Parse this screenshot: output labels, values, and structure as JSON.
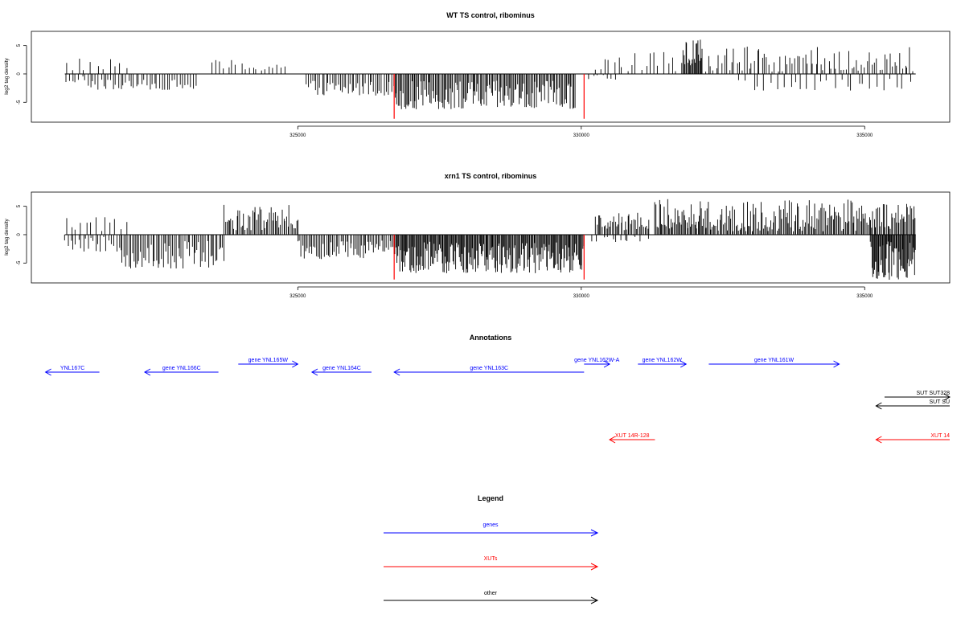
{
  "chart_data": [
    {
      "type": "bar",
      "title": "WT TS control, ribominus",
      "ylabel": "log2 tag density",
      "xlabel": "",
      "xlim": [
        320300,
        336500
      ],
      "ylim": [
        -8.5,
        7.5
      ],
      "x_ticks": [
        325000,
        330000,
        335000
      ],
      "y_ticks": [
        -5,
        0,
        5
      ],
      "bar_color": "#000000",
      "highlight_color": "#ff0000",
      "segments": [
        {
          "start": 320900,
          "end": 321300,
          "step": 60,
          "min": -1.6,
          "max": 0,
          "sign": -1
        },
        {
          "start": 320900,
          "end": 322000,
          "step": 110,
          "min": 0.6,
          "max": 2.9,
          "sign": 1
        },
        {
          "start": 321300,
          "end": 323200,
          "step": 45,
          "min": -2.8,
          "max": -1.0,
          "sign": -1
        },
        {
          "start": 323500,
          "end": 324800,
          "step": 70,
          "min": 0.5,
          "max": 2.6,
          "sign": 1
        },
        {
          "start": 325150,
          "end": 326750,
          "step": 35,
          "min": -3.8,
          "max": -1.0,
          "sign": -1
        },
        {
          "start": 326700,
          "end": 329900,
          "step": 22,
          "min": -6.2,
          "max": -1.2,
          "sign": -1
        },
        {
          "start": 330100,
          "end": 330700,
          "step": 90,
          "min": -1.3,
          "max": 0,
          "sign": -1
        },
        {
          "start": 330250,
          "end": 331800,
          "step": 80,
          "min": 0.4,
          "max": 4.0,
          "sign": 1
        },
        {
          "start": 331800,
          "end": 332150,
          "step": 16,
          "min": 1.5,
          "max": 6.6,
          "sign": 1
        },
        {
          "start": 332200,
          "end": 335850,
          "step": 45,
          "min": 0.4,
          "max": 4.8,
          "sign": 1
        },
        {
          "start": 332800,
          "end": 335850,
          "step": 110,
          "min": -3.0,
          "max": -0.8,
          "sign": -1
        }
      ],
      "highlights": [
        {
          "x": 326700,
          "value": -7.9
        },
        {
          "x": 330050,
          "value": -7.9
        }
      ]
    },
    {
      "type": "bar",
      "title": "xrn1 TS control, ribominus",
      "ylabel": "log2 tag density",
      "xlabel": "",
      "xlim": [
        320300,
        336500
      ],
      "ylim": [
        -8.5,
        7.5
      ],
      "x_ticks": [
        325000,
        330000,
        335000
      ],
      "y_ticks": [
        -5,
        0,
        5
      ],
      "bar_color": "#000000",
      "highlight_color": "#ff0000",
      "segments": [
        {
          "start": 320900,
          "end": 321900,
          "step": 45,
          "min": -3.0,
          "max": -0.4,
          "sign": -1
        },
        {
          "start": 320900,
          "end": 322000,
          "step": 90,
          "min": 0.5,
          "max": 3.4,
          "sign": 1
        },
        {
          "start": 321900,
          "end": 323700,
          "step": 30,
          "min": -6.0,
          "max": -1.0,
          "sign": -1
        },
        {
          "start": 323700,
          "end": 325000,
          "step": 25,
          "min": 0.8,
          "max": 5.3,
          "sign": 1
        },
        {
          "start": 325000,
          "end": 326700,
          "step": 28,
          "min": -4.3,
          "max": -1.0,
          "sign": -1
        },
        {
          "start": 326700,
          "end": 330050,
          "step": 16,
          "min": -6.8,
          "max": -1.2,
          "sign": -1
        },
        {
          "start": 330250,
          "end": 331200,
          "step": 25,
          "min": 0.8,
          "max": 4.2,
          "sign": 1
        },
        {
          "start": 330200,
          "end": 331200,
          "step": 70,
          "min": -1.3,
          "max": 0,
          "sign": -1
        },
        {
          "start": 331300,
          "end": 332200,
          "step": 20,
          "min": 1.0,
          "max": 6.4,
          "sign": 1
        },
        {
          "start": 332200,
          "end": 335100,
          "step": 22,
          "min": 0.6,
          "max": 6.2,
          "sign": 1
        },
        {
          "start": 335100,
          "end": 335900,
          "step": 14,
          "min": -8.0,
          "max": -1.0,
          "sign": -1
        },
        {
          "start": 335100,
          "end": 335900,
          "step": 22,
          "min": 1.0,
          "max": 5.5,
          "sign": 1
        }
      ],
      "highlights": [
        {
          "x": 326700,
          "value": -7.9
        },
        {
          "x": 330050,
          "value": -7.9
        }
      ]
    }
  ],
  "annotations": {
    "title": "Annotations",
    "items": [
      {
        "label": "YNL167C",
        "start": 320550,
        "end": 321500,
        "strand": "-",
        "row": 1,
        "color": "#0000ff"
      },
      {
        "label": "gene YNL166C",
        "start": 322300,
        "end": 323600,
        "strand": "-",
        "row": 1,
        "color": "#0000ff"
      },
      {
        "label": "gene YNL165W",
        "start": 323950,
        "end": 325000,
        "strand": "+",
        "row": 0,
        "color": "#0000ff"
      },
      {
        "label": "gene YNL164C",
        "start": 325250,
        "end": 326300,
        "strand": "-",
        "row": 1,
        "color": "#0000ff"
      },
      {
        "label": "gene YNL163C",
        "start": 326700,
        "end": 330050,
        "strand": "-",
        "row": 1,
        "color": "#0000ff"
      },
      {
        "label": "gene YNL162W-A",
        "start": 330050,
        "end": 330500,
        "strand": "+",
        "row": 0,
        "color": "#0000ff"
      },
      {
        "label": "gene YNL162W",
        "start": 331000,
        "end": 331850,
        "strand": "+",
        "row": 0,
        "color": "#0000ff"
      },
      {
        "label": "gene YNL161W",
        "start": 332250,
        "end": 334550,
        "strand": "+",
        "row": 0,
        "color": "#0000ff"
      },
      {
        "label": "SUT SUT328",
        "start": 335350,
        "end": 336500,
        "strand": "+",
        "row": 3,
        "color": "#000000"
      },
      {
        "label": "SUT SU",
        "start": 335200,
        "end": 336500,
        "strand": "-",
        "row": 4,
        "color": "#000000"
      },
      {
        "label": "XUT 14R-128",
        "start": 330500,
        "end": 331300,
        "strand": "-",
        "row": 6,
        "color": "#ff0000"
      },
      {
        "label": "XUT 14",
        "start": 335200,
        "end": 336500,
        "strand": "-",
        "row": 6,
        "color": "#ff0000"
      }
    ]
  },
  "legend": {
    "title": "Legend",
    "items": [
      {
        "label": "genes",
        "color": "#0000ff"
      },
      {
        "label": "XUTs",
        "color": "#ff0000"
      },
      {
        "label": "other",
        "color": "#000000"
      }
    ]
  }
}
